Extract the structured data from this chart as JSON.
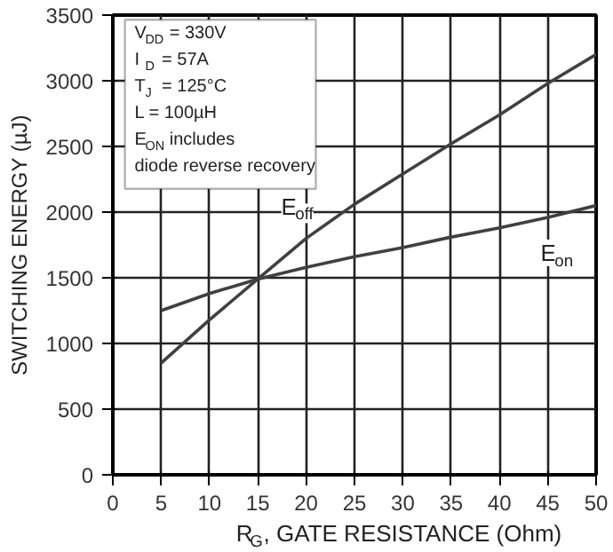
{
  "chart_data": {
    "type": "line",
    "xlabel": "R$_{G}$, GATE RESISTANCE (Ohm)",
    "ylabel": "SWITCHING ENERGY (µJ)",
    "x": [
      5,
      10,
      15,
      20,
      25,
      30,
      35,
      40,
      45,
      50
    ],
    "series": [
      {
        "name": "E$_{off}$",
        "color": "#404040",
        "values": [
          850,
          1180,
          1490,
          1800,
          2060,
          2290,
          2520,
          2740,
          2980,
          3200
        ]
      },
      {
        "name": "E$_{on}$",
        "color": "#404040",
        "values": [
          1250,
          1380,
          1490,
          1580,
          1660,
          1730,
          1810,
          1880,
          1960,
          2050
        ]
      }
    ],
    "annotations": [
      "V$_{DD}$ = 330V",
      "I$_{D}$ = 57A",
      "T$_{J}$ = 125°C",
      "L = 100µH",
      "E$_{ON}$ includes",
      "diode reverse recovery"
    ],
    "xlim": [
      0,
      50
    ],
    "ylim": [
      0,
      3500
    ],
    "xticks": [
      0,
      5,
      10,
      15,
      20,
      25,
      30,
      35,
      40,
      45,
      50
    ],
    "yticks": [
      0,
      500,
      1000,
      1500,
      2000,
      2500,
      3000,
      3500
    ],
    "grid": true,
    "legend": false,
    "marker": "none",
    "line_style": "solid"
  }
}
